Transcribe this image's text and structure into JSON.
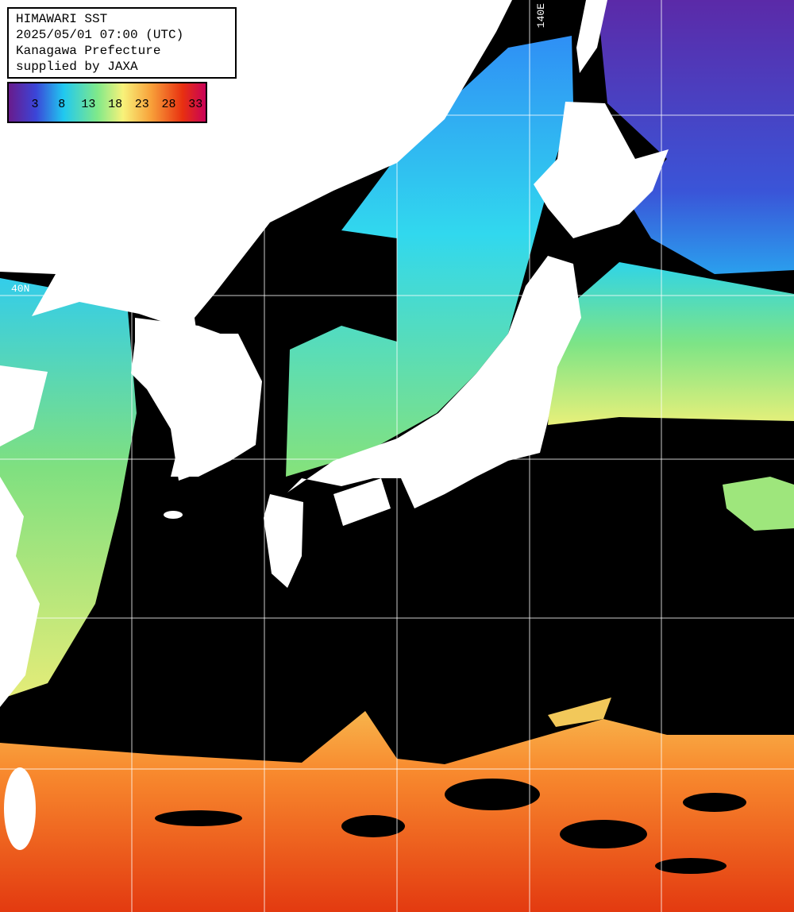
{
  "header": {
    "lines": [
      "HIMAWARI SST",
      "2025/05/01 07:00 (UTC)",
      "Kanagawa Prefecture",
      "supplied by JAXA"
    ]
  },
  "legend": {
    "ticks": [
      3,
      8,
      13,
      18,
      23,
      28,
      33
    ]
  },
  "grid_labels": {
    "latitude": "40N",
    "longitude": "140E"
  }
}
